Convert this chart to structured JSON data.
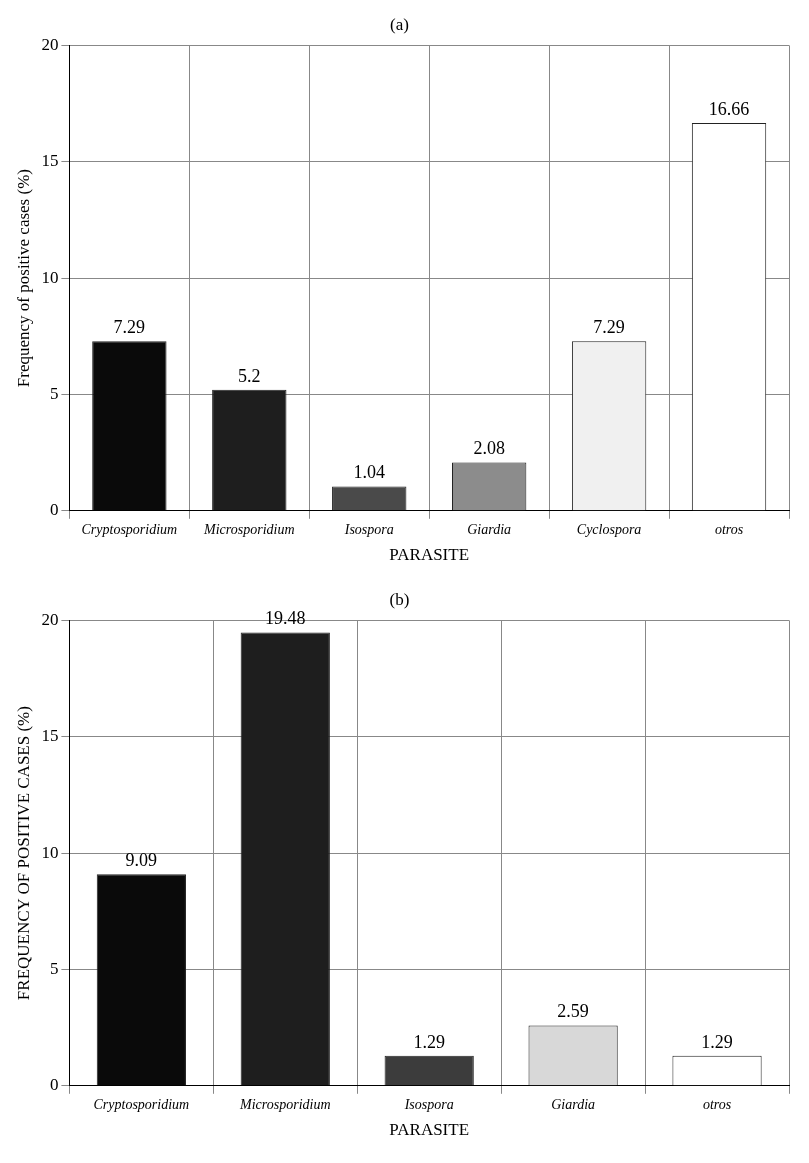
{
  "chart_data": [
    {
      "type": "bar",
      "title": "(a)",
      "xlabel": "PARASITE",
      "ylabel": "Frequency of positive cases (%)",
      "categories": [
        "Cryptosporidium",
        "Microsporidium",
        "Isospora",
        "Giardia",
        "Cyclospora",
        "otros"
      ],
      "values": [
        7.29,
        5.2,
        1.04,
        2.08,
        7.29,
        16.66
      ],
      "colors": [
        "#0a0a0a",
        "#1e1e1e",
        "#4a4a4a",
        "#8c8c8c",
        "#f0f0f0",
        "#ffffff"
      ],
      "ylim": [
        0,
        20
      ],
      "yticks": [
        0,
        5,
        10,
        15,
        20
      ],
      "grid": true,
      "data_labels": true
    },
    {
      "type": "bar",
      "title": "(b)",
      "xlabel": "PARASITE",
      "ylabel": "FREQUENCY OF POSITIVE CASES (%)",
      "categories": [
        "Cryptosporidium",
        "Microsporidium",
        "Isospora",
        "Giardia",
        "otros"
      ],
      "values": [
        9.09,
        19.48,
        1.29,
        2.59,
        1.29
      ],
      "colors": [
        "#0a0a0a",
        "#1e1e1e",
        "#3c3c3c",
        "#d8d8d8",
        "#ffffff"
      ],
      "ylim": [
        0,
        20
      ],
      "yticks": [
        0,
        5,
        10,
        15,
        20
      ],
      "grid": true,
      "data_labels": true
    }
  ]
}
